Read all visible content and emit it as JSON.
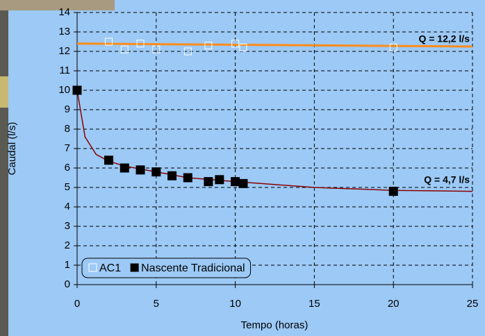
{
  "chart_data": {
    "type": "scatter",
    "xlabel": "Tempo (horas)",
    "ylabel": "Caudal (l/s)",
    "xlim": [
      0,
      25
    ],
    "xticks": [
      0,
      5,
      10,
      15,
      20,
      25
    ],
    "ylim": [
      0,
      14
    ],
    "yticks": [
      0,
      1,
      2,
      3,
      4,
      5,
      6,
      7,
      8,
      9,
      10,
      11,
      12,
      13,
      14
    ],
    "grid": true,
    "legend": "lower left",
    "series": [
      {
        "color": "#ff8c1a",
        "marker": "line",
        "x": [
          0,
          25
        ],
        "values": [
          12.4,
          12.25
        ]
      },
      {
        "color": "#8b0000",
        "marker": "line",
        "x": [
          0,
          0.5,
          1.2,
          2,
          3,
          5,
          7,
          10,
          15,
          20,
          25
        ],
        "values": [
          10,
          7.6,
          6.7,
          6.35,
          6.1,
          5.8,
          5.5,
          5.3,
          5.0,
          4.85,
          4.8
        ]
      },
      {
        "name": "AC1",
        "color": "#ffffff",
        "marker": "open-square",
        "x": [
          2,
          3,
          4,
          5,
          7,
          8.3,
          10,
          10.5,
          20
        ],
        "values": [
          12.5,
          12.1,
          12.4,
          12.1,
          12.0,
          12.3,
          12.4,
          12.2,
          12.2
        ]
      },
      {
        "name": "Nascente Tradicional",
        "color": "#000000",
        "marker": "filled-square",
        "x": [
          0,
          2,
          3,
          4,
          5,
          6,
          7,
          8.3,
          9,
          10,
          10.5,
          20
        ],
        "values": [
          10,
          6.4,
          6.0,
          5.9,
          5.8,
          5.6,
          5.5,
          5.3,
          5.4,
          5.3,
          5.2,
          4.8
        ]
      }
    ],
    "annotations": [
      "Q = 12,2 l/s",
      "Q = 4,7 l/s"
    ]
  }
}
